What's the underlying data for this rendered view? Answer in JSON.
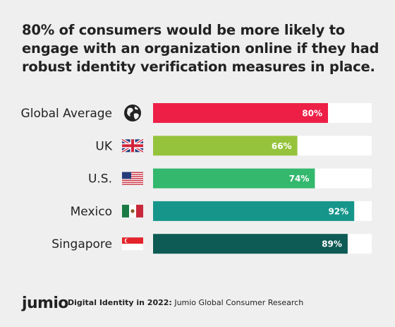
{
  "title": "80% of consumers would be more likely to engage with an organization online if they had robust identity verification measures in place.",
  "footer": {
    "brand": "jumio",
    "report_bold": "Digital Identity in 2022:",
    "report_rest": " Jumio Global Consumer Research"
  },
  "chart_data": {
    "type": "bar",
    "orientation": "horizontal",
    "categories": [
      "Global Average",
      "UK",
      "U.S.",
      "Mexico",
      "Singapore"
    ],
    "values": [
      80,
      66,
      74,
      92,
      89
    ],
    "value_suffix": "%",
    "xlim": [
      0,
      100
    ],
    "bar_colors": [
      "#ee1f47",
      "#96c33c",
      "#33b86e",
      "#16968b",
      "#0e5a54"
    ],
    "track_color": "#ffffff",
    "icons": [
      "globe-icon",
      "uk-flag-icon",
      "us-flag-icon",
      "mexico-flag-icon",
      "singapore-flag-icon"
    ]
  }
}
